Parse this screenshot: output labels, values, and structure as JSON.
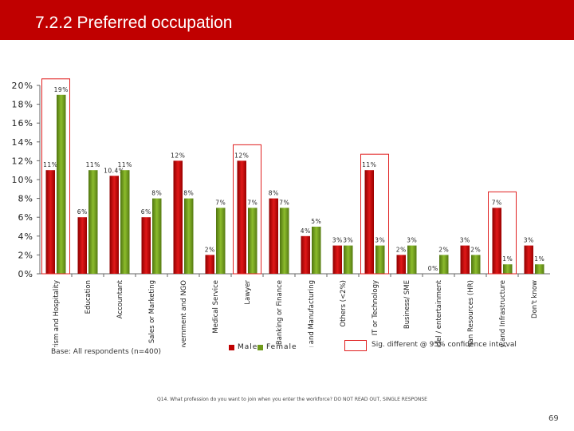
{
  "header": {
    "title": "7.2.2 Preferred occupation"
  },
  "colors": {
    "title_bar": "#c00000",
    "male": "#c00000",
    "female": "#6f9a1b",
    "sig_box": "#e02020"
  },
  "chart_data": {
    "type": "bar",
    "title": "",
    "xlabel": "",
    "ylabel": "",
    "ylim": [
      0,
      20
    ],
    "y_ticks": [
      "0%",
      "2%",
      "4%",
      "6%",
      "8%",
      "10%",
      "12%",
      "14%",
      "16%",
      "18%",
      "20%"
    ],
    "categories": [
      "Tourism and Hospitality",
      "Education",
      "Accountant",
      "Sales or Marketing",
      "Government and NGO",
      "Medical Service",
      "Lawyer",
      "Banking or Finance",
      "Trading and Manufacturing",
      "Others (<2%)",
      "IT or Technology",
      "Business/ SME",
      "Model / entertainment",
      "Human Resources (HR)",
      "Construction / Property and Infrastructure",
      "Don't know"
    ],
    "series": [
      {
        "name": "Male",
        "values": [
          11,
          6,
          10.4,
          6,
          12,
          2,
          12,
          8,
          4,
          3,
          11,
          2,
          0,
          3,
          7,
          3
        ],
        "labels": [
          "11%",
          "6%",
          "10.4%",
          "6%",
          "12%",
          "2%",
          "12%",
          "8%",
          "4%",
          "3%",
          "11%",
          "2%",
          "0%",
          "3%",
          "7%",
          "3%"
        ]
      },
      {
        "name": "Female",
        "values": [
          19,
          11,
          11,
          8,
          8,
          7,
          7,
          7,
          5,
          3,
          3,
          3,
          2,
          2,
          1,
          1
        ],
        "labels": [
          "19%",
          "11%",
          "11%",
          "8%",
          "8%",
          "7%",
          "7%",
          "7%",
          "5%",
          "3%",
          "3%",
          "3%",
          "2%",
          "2%",
          "1%",
          "1%"
        ]
      }
    ],
    "significant_indices": [
      0,
      6,
      10,
      14
    ],
    "grid": false,
    "legend": "bottom"
  },
  "legend_labels": {
    "male": "Male",
    "female": "Female"
  },
  "notes": {
    "base": "Base: All respondents (n=400)",
    "sig": "Sig. different @ 95% confidence interval",
    "question": "Q14. What profession do you want to join when you enter the workforce? DO NOT READ OUT, SINGLE RESPONSE",
    "page_number": "69"
  }
}
